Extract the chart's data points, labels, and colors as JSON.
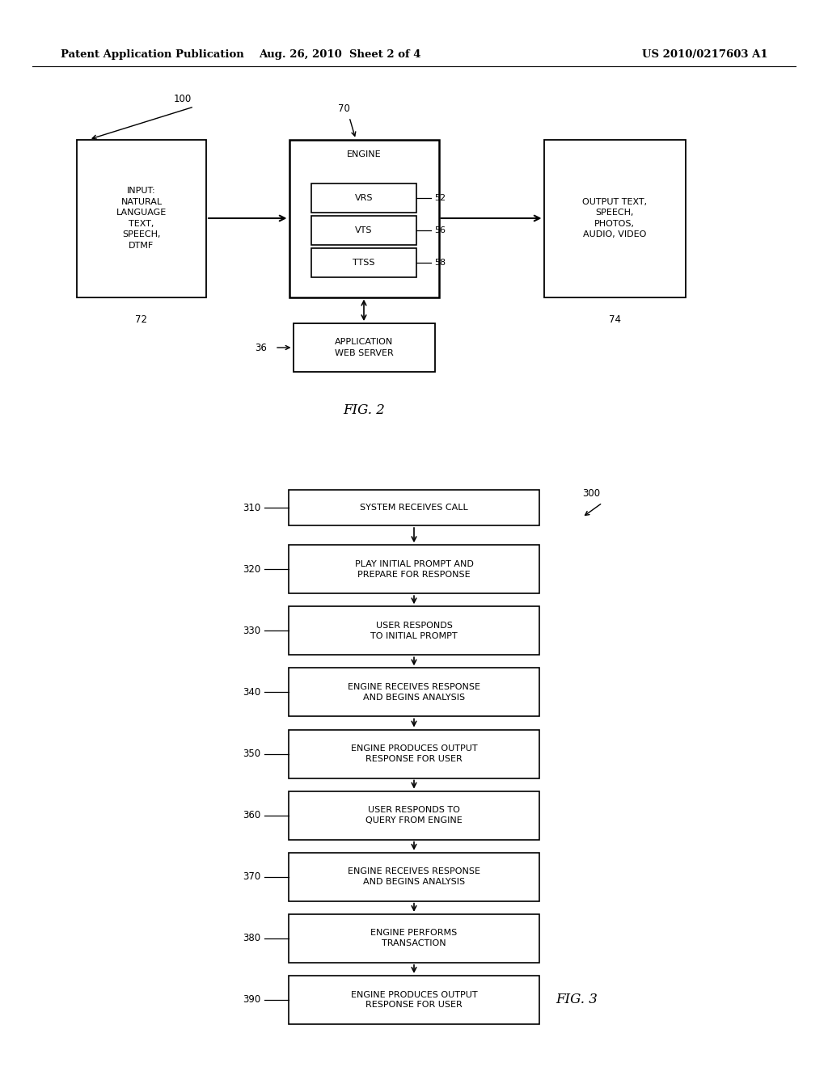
{
  "background_color": "#ffffff",
  "header_left": "Patent Application Publication",
  "header_center": "Aug. 26, 2010  Sheet 2 of 4",
  "header_right": "US 2010/0217603 A1",
  "fig2": {
    "label": "FIG. 2",
    "num100": "100",
    "num70": "70",
    "num72": "72",
    "num74": "74",
    "num36": "36",
    "num52": "52",
    "num56": "56",
    "num58": "58",
    "input_text": "INPUT:\nNATURAL\nLANGUAGE\nTEXT,\nSPEECH,\nDTMF",
    "engine_text": "ENGINE",
    "vrs_text": "VRS",
    "vts_text": "VTS",
    "ttss_text": "TTSS",
    "output_text": "OUTPUT TEXT,\nSPEECH,\nPHOTOS,\nAUDIO, VIDEO",
    "server_text": "APPLICATION\nWEB SERVER"
  },
  "fig3": {
    "label": "FIG. 3",
    "num300": "300",
    "steps": [
      {
        "num": "310",
        "text": "SYSTEM RECEIVES CALL",
        "lines": 1
      },
      {
        "num": "320",
        "text": "PLAY INITIAL PROMPT AND\nPREPARE FOR RESPONSE",
        "lines": 2
      },
      {
        "num": "330",
        "text": "USER RESPONDS\nTO INITIAL PROMPT",
        "lines": 2
      },
      {
        "num": "340",
        "text": "ENGINE RECEIVES RESPONSE\nAND BEGINS ANALYSIS",
        "lines": 2
      },
      {
        "num": "350",
        "text": "ENGINE PRODUCES OUTPUT\nRESPONSE FOR USER",
        "lines": 2
      },
      {
        "num": "360",
        "text": "USER RESPONDS TO\nQUERY FROM ENGINE",
        "lines": 2
      },
      {
        "num": "370",
        "text": "ENGINE RECEIVES RESPONSE\nAND BEGINS ANALYSIS",
        "lines": 2
      },
      {
        "num": "380",
        "text": "ENGINE PERFORMS\nTRANSACTION",
        "lines": 2
      },
      {
        "num": "390",
        "text": "ENGINE PRODUCES OUTPUT\nRESPONSE FOR USER",
        "lines": 2
      }
    ]
  }
}
